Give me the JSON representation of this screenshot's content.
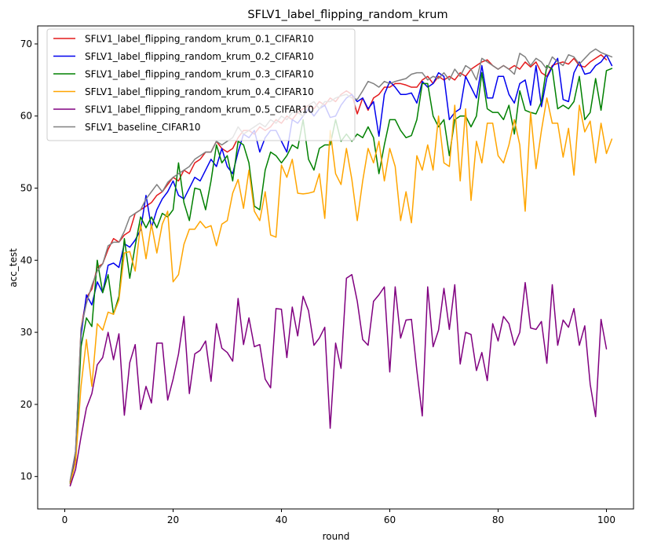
{
  "chart_data": {
    "type": "line",
    "title": "SFLV1_label_flipping_random_krum",
    "xlabel": "round",
    "ylabel": "acc_test",
    "xlim": [
      -5,
      105
    ],
    "ylim": [
      5.5,
      72.5
    ],
    "xticks": [
      0,
      20,
      40,
      60,
      80,
      100
    ],
    "yticks": [
      10,
      20,
      30,
      40,
      50,
      60,
      70
    ],
    "grid": false,
    "legend_position": "top-left",
    "x_start": 1,
    "series": [
      {
        "name": "SFLV1_label_flipping_random_krum_0.1_CIFAR10",
        "color": "#e41a1c",
        "values": [
          9.3,
          13.0,
          30.5,
          34.8,
          36.0,
          39.0,
          39.5,
          41.5,
          43.0,
          42.5,
          43.5,
          44.0,
          46.5,
          47.0,
          47.5,
          48.0,
          49.0,
          49.5,
          50.5,
          51.5,
          51.0,
          52.5,
          52.0,
          53.5,
          54.0,
          55.0,
          55.0,
          56.5,
          55.5,
          55.0,
          55.5,
          57.0,
          58.0,
          58.0,
          57.5,
          58.5,
          58.0,
          58.5,
          59.5,
          59.0,
          60.0,
          59.5,
          60.5,
          61.0,
          61.5,
          61.0,
          62.0,
          61.5,
          62.5,
          62.0,
          63.0,
          63.5,
          63.0,
          60.3,
          62.5,
          60.8,
          62.5,
          63.0,
          64.0,
          64.0,
          64.5,
          64.5,
          64.3,
          64.0,
          64.0,
          65.0,
          65.5,
          64.5,
          65.5,
          65.0,
          65.5,
          65.0,
          66.0,
          65.5,
          66.5,
          67.0,
          67.5,
          67.8,
          67.0,
          66.5,
          67.0,
          66.5,
          67.0,
          66.5,
          67.5,
          66.8,
          67.5,
          66.0,
          65.5,
          67.0,
          67.3,
          67.5,
          67.2,
          68.0,
          67.0,
          66.8,
          67.5,
          68.0,
          68.5,
          67.8
        ]
      },
      {
        "name": "SFLV1_label_flipping_random_krum_0.2_CIFAR10",
        "color": "#0000ee",
        "values": [
          9.0,
          13.5,
          29.5,
          35.2,
          33.8,
          37.0,
          35.5,
          39.3,
          39.6,
          39.0,
          42.3,
          41.8,
          42.8,
          44.2,
          49.0,
          44.5,
          47.0,
          48.5,
          49.5,
          51.0,
          49.0,
          48.5,
          50.0,
          51.5,
          51.0,
          52.5,
          54.0,
          53.0,
          55.5,
          53.0,
          52.0,
          55.0,
          57.5,
          57.0,
          58.0,
          55.0,
          57.0,
          58.0,
          58.0,
          56.5,
          55.0,
          59.5,
          59.0,
          60.0,
          61.0,
          60.0,
          61.0,
          61.5,
          59.8,
          60.0,
          61.5,
          62.5,
          63.0,
          62.0,
          62.5,
          61.0,
          62.0,
          57.2,
          63.0,
          64.8,
          64.0,
          63.0,
          63.0,
          63.2,
          61.8,
          64.8,
          64.0,
          64.5,
          66.0,
          65.5,
          59.5,
          60.5,
          61.0,
          65.5,
          64.0,
          62.5,
          67.0,
          62.5,
          62.5,
          65.5,
          65.5,
          63.0,
          61.8,
          64.5,
          65.0,
          61.5,
          67.0,
          61.3,
          65.3,
          66.8,
          68.0,
          62.3,
          62.0,
          66.0,
          67.5,
          65.8,
          66.0,
          67.0,
          67.5,
          68.5,
          67.0
        ]
      },
      {
        "name": "SFLV1_label_flipping_random_krum_0.3_CIFAR10",
        "color": "#008000",
        "values": [
          9.2,
          12.0,
          28.0,
          32.0,
          30.8,
          40.0,
          35.5,
          38.0,
          32.5,
          35.0,
          43.0,
          37.5,
          42.0,
          46.0,
          44.5,
          46.0,
          44.5,
          46.5,
          46.0,
          47.0,
          53.5,
          48.0,
          45.5,
          50.0,
          49.8,
          47.0,
          51.0,
          56.0,
          53.5,
          54.5,
          51.0,
          56.5,
          56.0,
          53.5,
          47.5,
          47.0,
          52.5,
          55.0,
          54.5,
          53.5,
          54.5,
          56.0,
          55.5,
          59.5,
          54.0,
          52.5,
          55.5,
          56.0,
          56.0,
          59.5,
          56.5,
          57.5,
          56.5,
          57.5,
          57.0,
          58.5,
          57.0,
          52.0,
          56.0,
          59.5,
          59.5,
          58.0,
          57.0,
          57.3,
          59.5,
          64.5,
          64.5,
          60.0,
          58.5,
          59.5,
          54.5,
          59.5,
          60.0,
          60.0,
          58.5,
          60.0,
          66.0,
          61.0,
          60.5,
          60.5,
          59.5,
          61.5,
          57.5,
          63.5,
          60.8,
          60.5,
          60.3,
          62.0,
          67.0,
          66.5,
          61.0,
          61.5,
          61.0,
          62.0,
          65.5,
          59.5,
          60.5,
          65.2,
          60.8,
          66.3,
          66.6
        ]
      },
      {
        "name": "SFLV1_label_flipping_random_krum_0.4_CIFAR10",
        "color": "#ffa500",
        "values": [
          9.0,
          12.0,
          22.5,
          29.0,
          22.5,
          31.2,
          30.3,
          32.8,
          32.5,
          34.5,
          41.0,
          41.2,
          38.5,
          45.0,
          40.2,
          45.0,
          41.0,
          45.0,
          46.8,
          37.0,
          38.0,
          42.2,
          44.3,
          44.3,
          45.4,
          44.5,
          44.8,
          42.0,
          45.0,
          45.5,
          49.3,
          51.2,
          47.2,
          52.5,
          46.8,
          45.5,
          49.5,
          43.5,
          43.2,
          53.2,
          51.5,
          54.0,
          49.3,
          49.2,
          49.3,
          49.5,
          52.0,
          45.8,
          58.0,
          52.0,
          50.5,
          55.5,
          51.2,
          45.5,
          51.0,
          55.5,
          53.5,
          56.5,
          51.0,
          55.5,
          53.0,
          45.5,
          49.5,
          45.2,
          54.5,
          52.5,
          56.0,
          52.5,
          60.0,
          53.5,
          53.0,
          61.5,
          51.0,
          61.0,
          48.3,
          56.5,
          53.5,
          59.0,
          59.0,
          54.5,
          53.5,
          56.0,
          59.5,
          56.0,
          46.8,
          60.5,
          52.7,
          58.0,
          62.5,
          59.0,
          59.0,
          54.3,
          58.3,
          51.8,
          61.5,
          57.8,
          59.3,
          53.5,
          59.0,
          54.8,
          56.8
        ]
      },
      {
        "name": "SFLV1_label_flipping_random_krum_0.5_CIFAR10",
        "color": "#800080",
        "values": [
          8.7,
          11.0,
          15.5,
          19.5,
          21.5,
          25.5,
          26.5,
          30.0,
          26.2,
          29.8,
          18.5,
          25.8,
          28.3,
          19.3,
          22.5,
          20.2,
          28.5,
          28.5,
          20.6,
          23.5,
          27.0,
          32.2,
          21.5,
          27.0,
          27.5,
          28.8,
          23.2,
          31.2,
          27.8,
          27.2,
          26.0,
          34.7,
          28.3,
          32.0,
          28.0,
          28.3,
          23.5,
          22.3,
          33.3,
          33.2,
          26.5,
          33.5,
          29.5,
          35.0,
          33.0,
          28.2,
          29.2,
          30.7,
          16.7,
          28.5,
          25.0,
          37.5,
          38.0,
          34.3,
          29.0,
          28.2,
          34.3,
          35.2,
          36.3,
          24.5,
          36.3,
          29.2,
          31.7,
          31.8,
          24.7,
          18.4,
          36.3,
          28.0,
          30.3,
          36.1,
          30.4,
          36.6,
          25.6,
          30.0,
          29.7,
          24.7,
          27.2,
          23.3,
          31.2,
          28.8,
          32.2,
          31.2,
          28.2,
          30.0,
          36.9,
          30.6,
          30.4,
          31.5,
          25.7,
          36.6,
          28.2,
          31.7,
          30.7,
          33.3,
          28.2,
          30.9,
          22.8,
          18.3,
          31.8,
          27.7
        ]
      },
      {
        "name": "SFLV1_baseline_CIFAR10",
        "color": "#808080",
        "values": [
          9.5,
          13.5,
          30.5,
          34.0,
          36.5,
          38.5,
          39.5,
          42.0,
          42.5,
          42.5,
          44.0,
          46.0,
          46.5,
          47.0,
          48.5,
          49.5,
          50.5,
          49.5,
          50.8,
          51.5,
          52.0,
          52.5,
          53.0,
          54.0,
          54.5,
          55.0,
          55.0,
          56.5,
          56.0,
          56.5,
          57.0,
          58.5,
          57.5,
          58.0,
          58.5,
          59.0,
          58.5,
          59.5,
          59.0,
          60.0,
          59.5,
          60.5,
          60.5,
          60.0,
          61.5,
          62.0,
          61.0,
          62.0,
          62.0,
          62.5,
          62.8,
          63.0,
          62.5,
          62.3,
          63.5,
          64.8,
          64.5,
          64.0,
          64.8,
          64.5,
          64.8,
          65.0,
          65.2,
          65.8,
          66.0,
          66.0,
          65.0,
          65.5,
          65.2,
          66.0,
          65.0,
          66.5,
          65.5,
          67.0,
          66.5,
          65.0,
          68.0,
          67.5,
          67.0,
          66.5,
          67.0,
          66.5,
          65.8,
          68.7,
          68.2,
          67.0,
          68.0,
          67.5,
          66.5,
          68.2,
          67.5,
          67.0,
          68.5,
          68.2,
          67.2,
          68.0,
          68.8,
          69.3,
          68.8,
          68.5,
          68.2
        ]
      }
    ]
  }
}
